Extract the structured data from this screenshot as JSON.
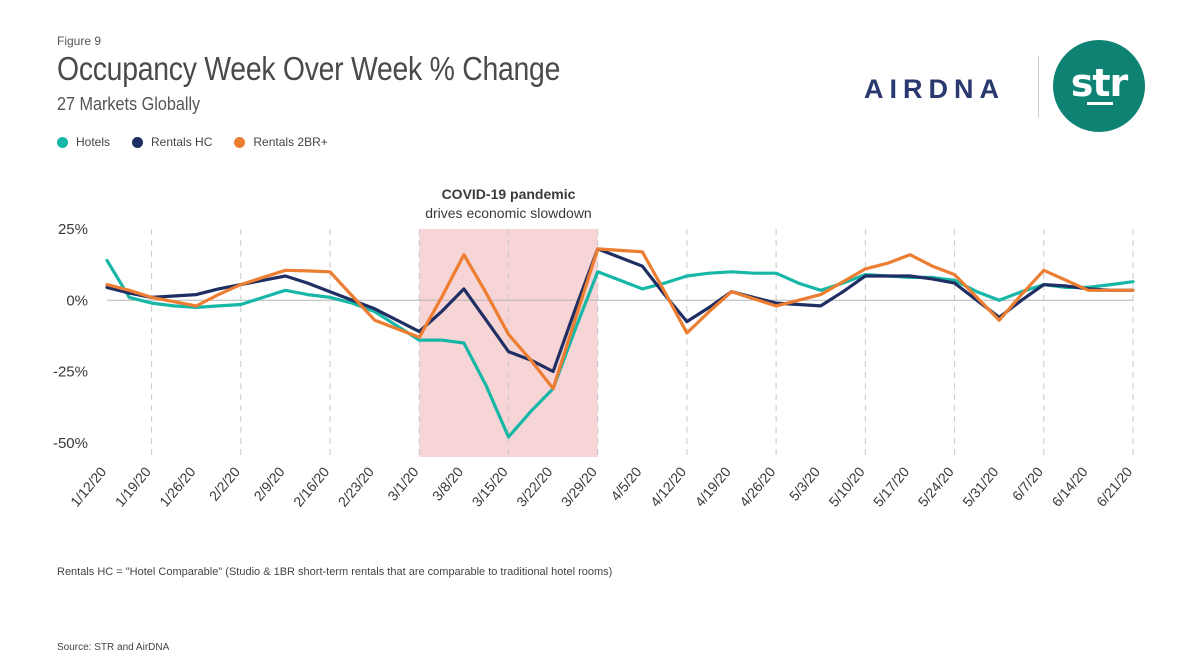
{
  "figure_label": "Figure 9",
  "title": "Occupancy Week Over Week % Change",
  "subtitle": "27 Markets Globally",
  "logos": {
    "airdna": "AIRDNA",
    "str": "str"
  },
  "colors": {
    "hotels": "#17b7a7",
    "rentals_hc": "#1f2f63",
    "rentals_2br": "#ec7d31",
    "shade": "#f7d4d5",
    "airdna": "#2a3870",
    "str_bg": "#0e8373"
  },
  "footnote": "Rentals HC = \"Hotel Comparable\" (Studio & 1BR short-term rentals that are comparable to traditional hotel rooms)",
  "source": "Source: STR and AirDNA",
  "chart_data": {
    "type": "line",
    "title": "Occupancy Week Over Week % Change",
    "xlabel": "",
    "ylabel": "",
    "ylim": [
      -55,
      25
    ],
    "yticks": [
      25,
      0,
      -25,
      -50
    ],
    "ytick_labels": [
      "25%",
      "0%",
      "-25%",
      "-50%"
    ],
    "categories": [
      "1/12/20",
      "1/19/20",
      "1/26/20",
      "2/2/20",
      "2/9/20",
      "2/16/20",
      "2/23/20",
      "3/1/20",
      "3/8/20",
      "3/15/20",
      "3/22/20",
      "3/29/20",
      "4/5/20",
      "4/12/20",
      "4/19/20",
      "4/26/20",
      "5/3/20",
      "5/10/20",
      "5/17/20",
      "5/24/20",
      "5/31/20",
      "6/7/20",
      "6/14/20",
      "6/21/20"
    ],
    "x_positions": [
      0,
      1,
      1.5,
      2,
      2.5,
      3,
      3.5,
      4,
      4.5,
      5,
      5.5,
      6,
      6.5,
      7,
      7.5,
      8,
      8.5,
      9,
      9.5,
      10,
      10.5,
      11,
      11.5,
      12,
      12.5,
      13,
      13.5,
      14,
      14.5,
      15,
      15.5,
      16,
      16.5,
      17,
      17.5,
      18,
      18.5,
      19,
      19.5,
      20,
      20.5,
      21,
      21.5,
      22,
      22.5,
      23
    ],
    "series": [
      {
        "name": "Hotels",
        "color_key": "hotels",
        "x": [
          0,
          0.5,
          1,
          1.5,
          2,
          2.5,
          3,
          3.5,
          4,
          4.5,
          5,
          5.5,
          6,
          6.5,
          7,
          7.5,
          8,
          8.5,
          9,
          9.5,
          10,
          10.5,
          11,
          11.5,
          12,
          12.5,
          13,
          13.5,
          14,
          14.5,
          15,
          15.5,
          16,
          16.5,
          17,
          17.5,
          18,
          18.5,
          19,
          19.5,
          20,
          20.5,
          21,
          21.5,
          22,
          22.5,
          23
        ],
        "values": [
          14,
          1,
          -1,
          -2,
          -2.5,
          -2,
          -1.5,
          1,
          3.5,
          2,
          1,
          -1,
          -4,
          -9,
          -14,
          -14,
          -15,
          -30,
          -48,
          -39,
          -31,
          -10,
          10,
          7,
          4,
          6,
          8.5,
          9.5,
          10,
          9.5,
          9.5,
          6,
          3.5,
          6,
          9,
          8.5,
          8,
          8,
          7,
          3,
          0,
          3,
          5.5,
          4.5,
          4.5,
          5.5,
          6.5
        ]
      },
      {
        "name": "Rentals HC",
        "color_key": "rentals_hc",
        "x": [
          0,
          0.5,
          1,
          1.5,
          2,
          2.5,
          3,
          3.5,
          4,
          4.5,
          5,
          5.5,
          6,
          6.5,
          7,
          7.5,
          8,
          8.5,
          9,
          9.5,
          10,
          10.5,
          11,
          11.5,
          12,
          12.5,
          13,
          13.5,
          14,
          14.5,
          15,
          15.5,
          16,
          16.5,
          17,
          17.5,
          18,
          18.5,
          19,
          19.5,
          20,
          20.5,
          21,
          21.5,
          22,
          22.5,
          23
        ],
        "values": [
          4.5,
          2.5,
          1,
          1.5,
          2,
          4,
          5.5,
          7,
          8.5,
          6,
          3,
          0,
          -3,
          -7,
          -11,
          -4,
          4,
          -7,
          -18,
          -21,
          -25,
          -3,
          18,
          15,
          12,
          2,
          -7.5,
          -2.5,
          3,
          1,
          -1,
          -1.5,
          -2,
          3,
          8.5,
          8.5,
          8.5,
          7.5,
          6,
          0,
          -6,
          0,
          5.5,
          5,
          4,
          3.5,
          3.5
        ]
      },
      {
        "name": "Rentals 2BR+",
        "color_key": "rentals_2br",
        "x": [
          0,
          0.5,
          1,
          1.5,
          2,
          2.5,
          3,
          3.5,
          4,
          4.5,
          5,
          5.5,
          6,
          6.5,
          7,
          7.5,
          8,
          8.5,
          9,
          9.5,
          10,
          10.5,
          11,
          11.5,
          12,
          12.5,
          13,
          13.5,
          14,
          14.5,
          15,
          15.5,
          16,
          16.5,
          17,
          17.5,
          18,
          18.5,
          19,
          19.5,
          20,
          20.5,
          21,
          21.5,
          22,
          22.5,
          23
        ],
        "values": [
          5.5,
          3.5,
          1,
          -0.5,
          -2,
          2,
          5.5,
          8,
          10.5,
          10.3,
          10,
          1.5,
          -7,
          -10,
          -13,
          1,
          16,
          2.5,
          -12,
          -21,
          -31,
          -6.5,
          18,
          17.5,
          17,
          3,
          -11.5,
          -4,
          3,
          0.5,
          -2,
          0,
          2,
          6.5,
          11,
          13,
          16,
          12,
          9,
          1,
          -7,
          2,
          10.5,
          7,
          3.5,
          3.5,
          3.5
        ]
      }
    ],
    "shaded_region": {
      "x_start": 7,
      "x_end": 11,
      "label_line1": "COVID-19 pandemic",
      "label_line2": "drives economic slowdown"
    },
    "legend": {
      "position": "top-left",
      "entries": [
        "Hotels",
        "Rentals HC",
        "Rentals 2BR+"
      ]
    },
    "vertical_gridlines_every": 2
  }
}
